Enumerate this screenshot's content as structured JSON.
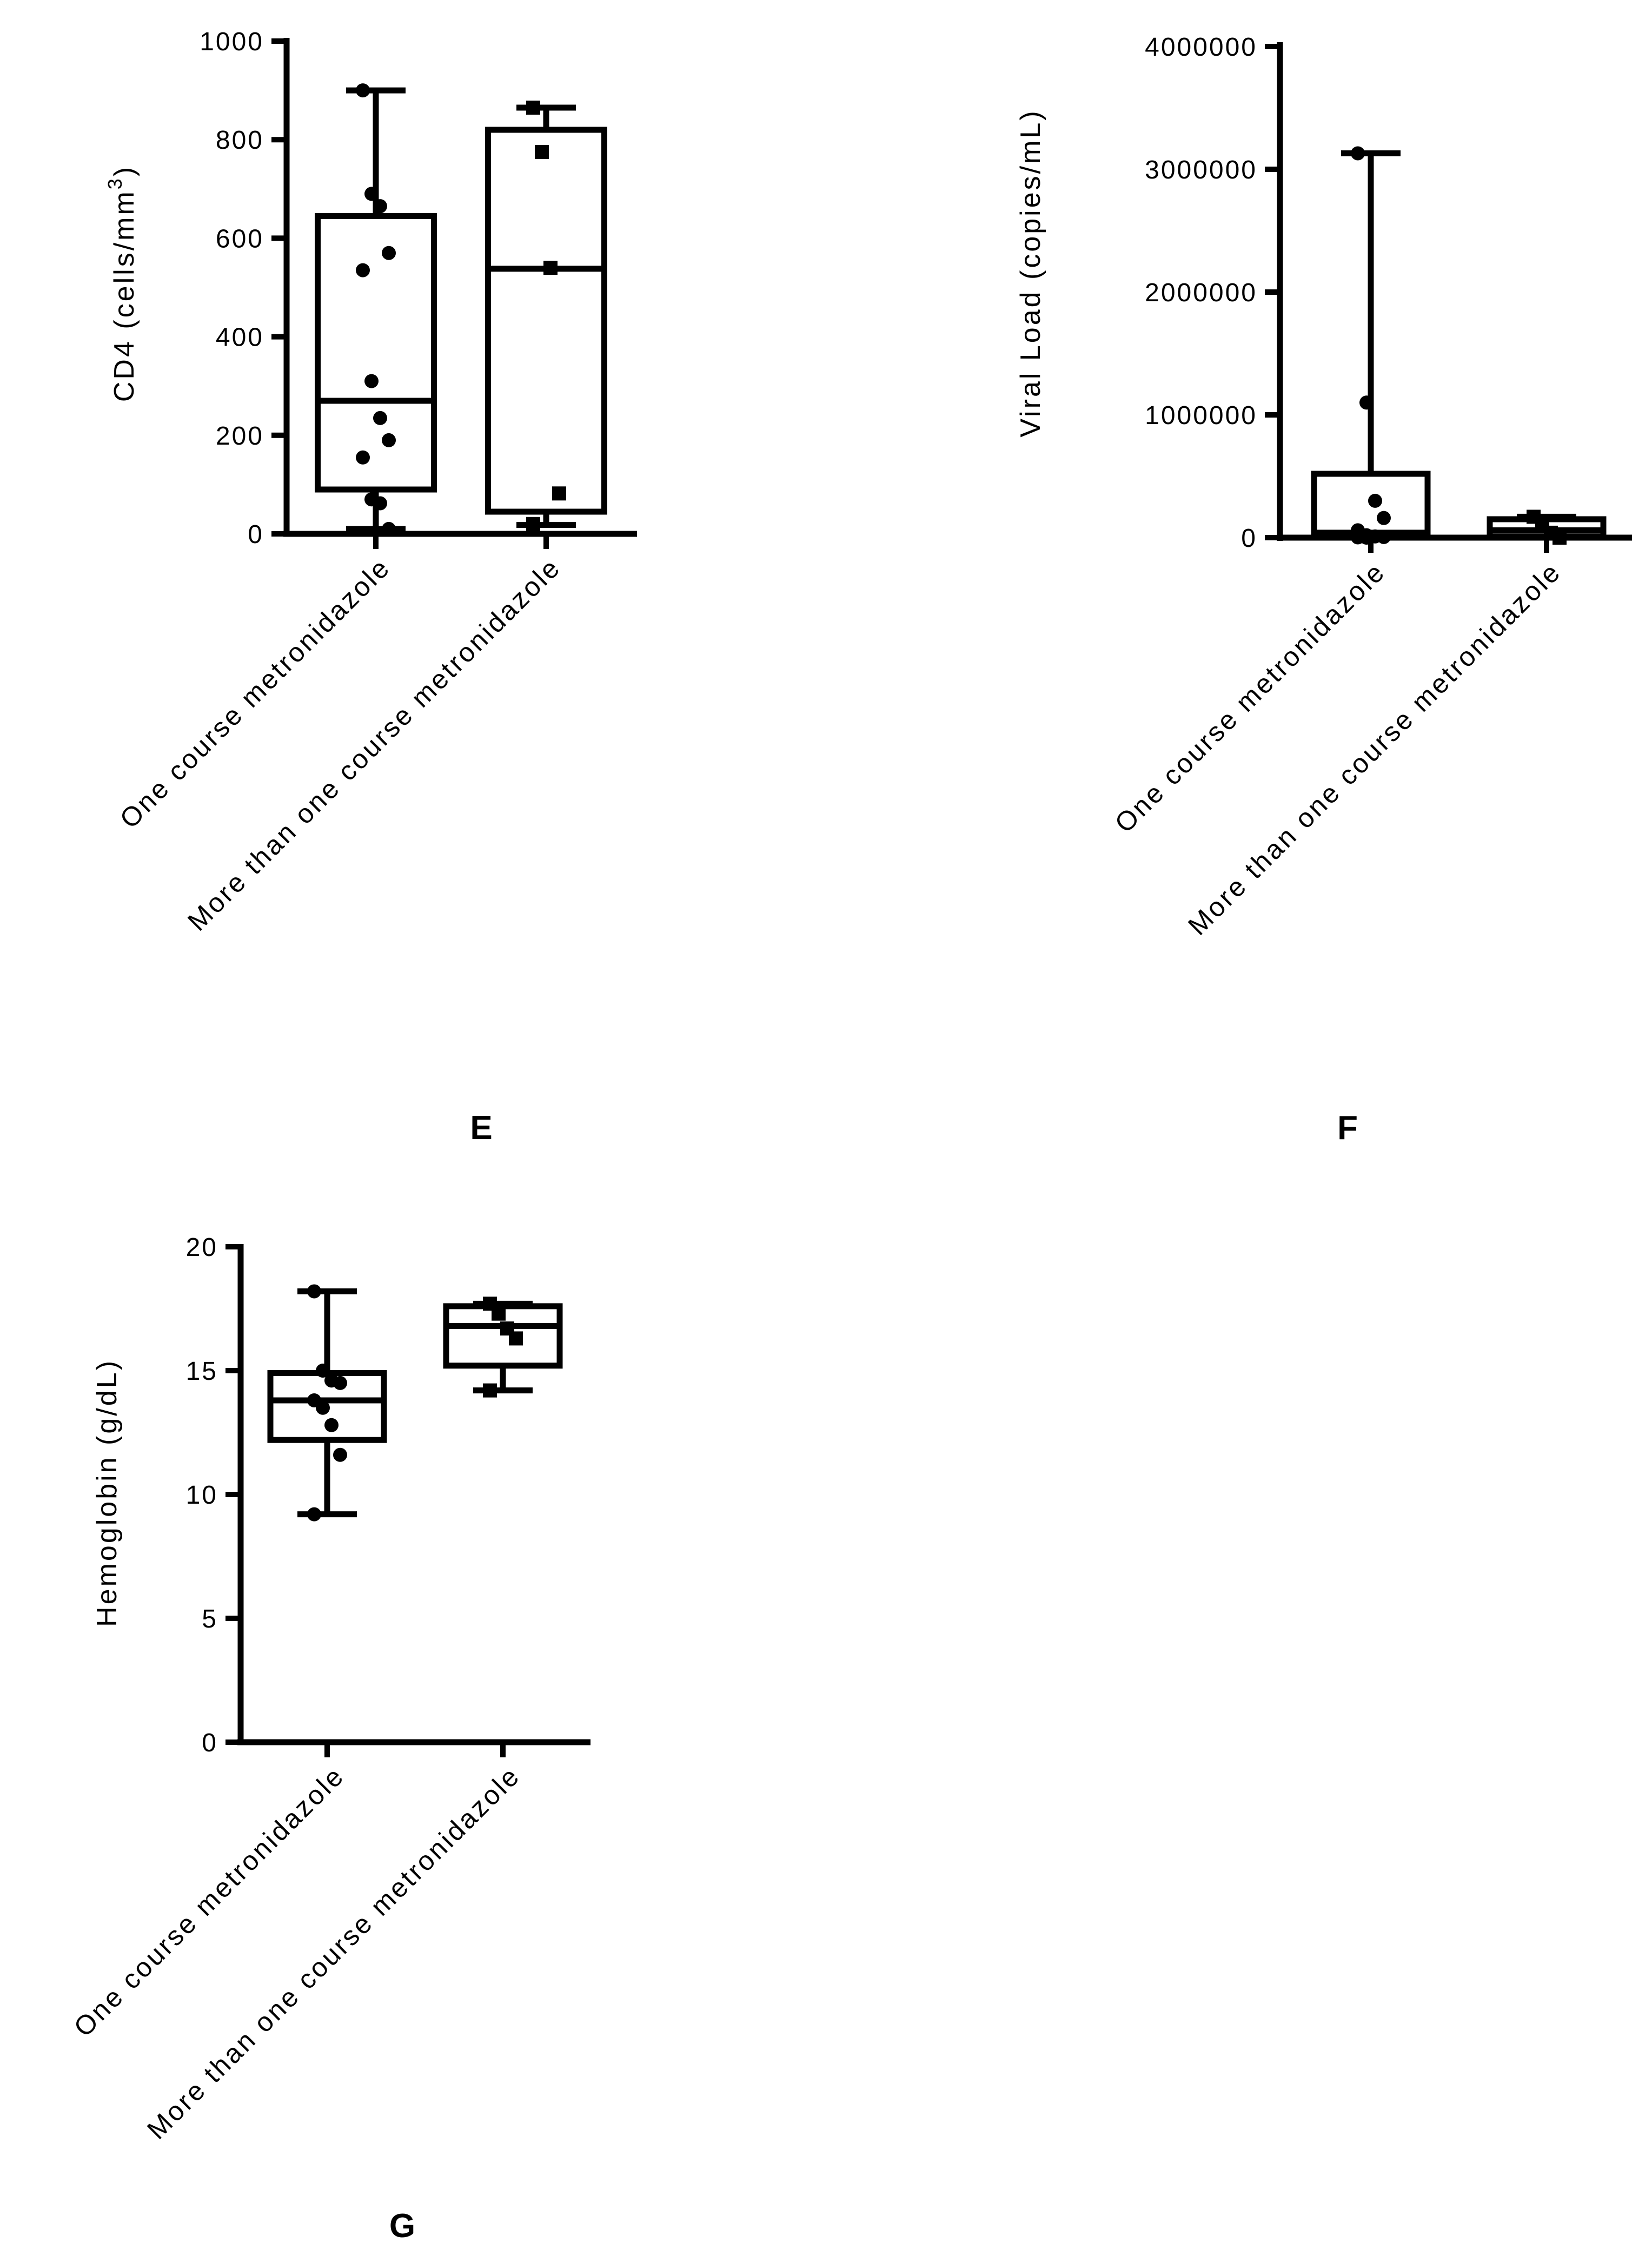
{
  "chart_data": [
    {
      "type": "box",
      "panel_label": "E",
      "ylabel": "CD4 (cells/mm",
      "ylabel_sup": "3",
      "ylabel_close": ")",
      "ylim": [
        0,
        1000
      ],
      "yticks": [
        0,
        200,
        400,
        600,
        800,
        1000
      ],
      "ytick_labels": [
        "0",
        "200",
        "400",
        "600",
        "800",
        "1000"
      ],
      "categories": [
        "One course metronidazole",
        "More than one course metronidazole"
      ],
      "boxes": [
        {
          "category": "One course metronidazole",
          "min": 10,
          "q1": 90,
          "median": 270,
          "q3": 645,
          "max": 900,
          "marker": "circle",
          "points": [
            900,
            690,
            665,
            570,
            535,
            310,
            235,
            190,
            155,
            70,
            62,
            10
          ]
        },
        {
          "category": "More than one course metronidazole",
          "min": 18,
          "q1": 45,
          "median": 538,
          "q3": 820,
          "max": 865,
          "marker": "square",
          "points": [
            865,
            775,
            540,
            82,
            20
          ]
        }
      ]
    },
    {
      "type": "box",
      "panel_label": "F",
      "ylabel": "Viral Load (copies/mL)",
      "ylim": [
        0,
        4000000
      ],
      "yticks": [
        0,
        1000000,
        2000000,
        3000000,
        4000000
      ],
      "ytick_labels": [
        "0",
        "1000000",
        "2000000",
        "3000000",
        "4000000"
      ],
      "categories": [
        "One course metronidazole",
        "More than one course metronidazole"
      ],
      "boxes": [
        {
          "category": "One course metronidazole",
          "min": 0,
          "q1": 20000,
          "median": 40000,
          "q3": 520000,
          "max": 3130000,
          "marker": "circle",
          "points": [
            3130000,
            1100000,
            300000,
            160000,
            60000,
            20000,
            10000,
            5000,
            2000,
            0
          ]
        },
        {
          "category": "More than one course metronidazole",
          "min": 0,
          "q1": 10000,
          "median": 60000,
          "q3": 150000,
          "max": 170000,
          "marker": "square",
          "points": [
            170000,
            110000,
            40000,
            0
          ]
        }
      ]
    },
    {
      "type": "box",
      "panel_label": "G",
      "ylabel": "Hemoglobin (g/dL)",
      "ylim": [
        0,
        20
      ],
      "yticks": [
        0,
        5,
        10,
        15,
        20
      ],
      "ytick_labels": [
        "0",
        "5",
        "10",
        "15",
        "20"
      ],
      "categories": [
        "One course metronidazole",
        "More than one course metronidazole"
      ],
      "boxes": [
        {
          "category": "One course metronidazole",
          "min": 9.2,
          "q1": 12.2,
          "median": 13.8,
          "q3": 14.9,
          "max": 18.2,
          "marker": "circle",
          "points": [
            18.2,
            15.0,
            14.6,
            14.5,
            13.8,
            13.5,
            12.8,
            11.6,
            9.2
          ]
        },
        {
          "category": "More than one course metronidazole",
          "min": 14.2,
          "q1": 15.2,
          "median": 16.8,
          "q3": 17.6,
          "max": 17.7,
          "marker": "square",
          "points": [
            17.7,
            17.3,
            16.7,
            16.3,
            14.2
          ]
        }
      ]
    }
  ]
}
